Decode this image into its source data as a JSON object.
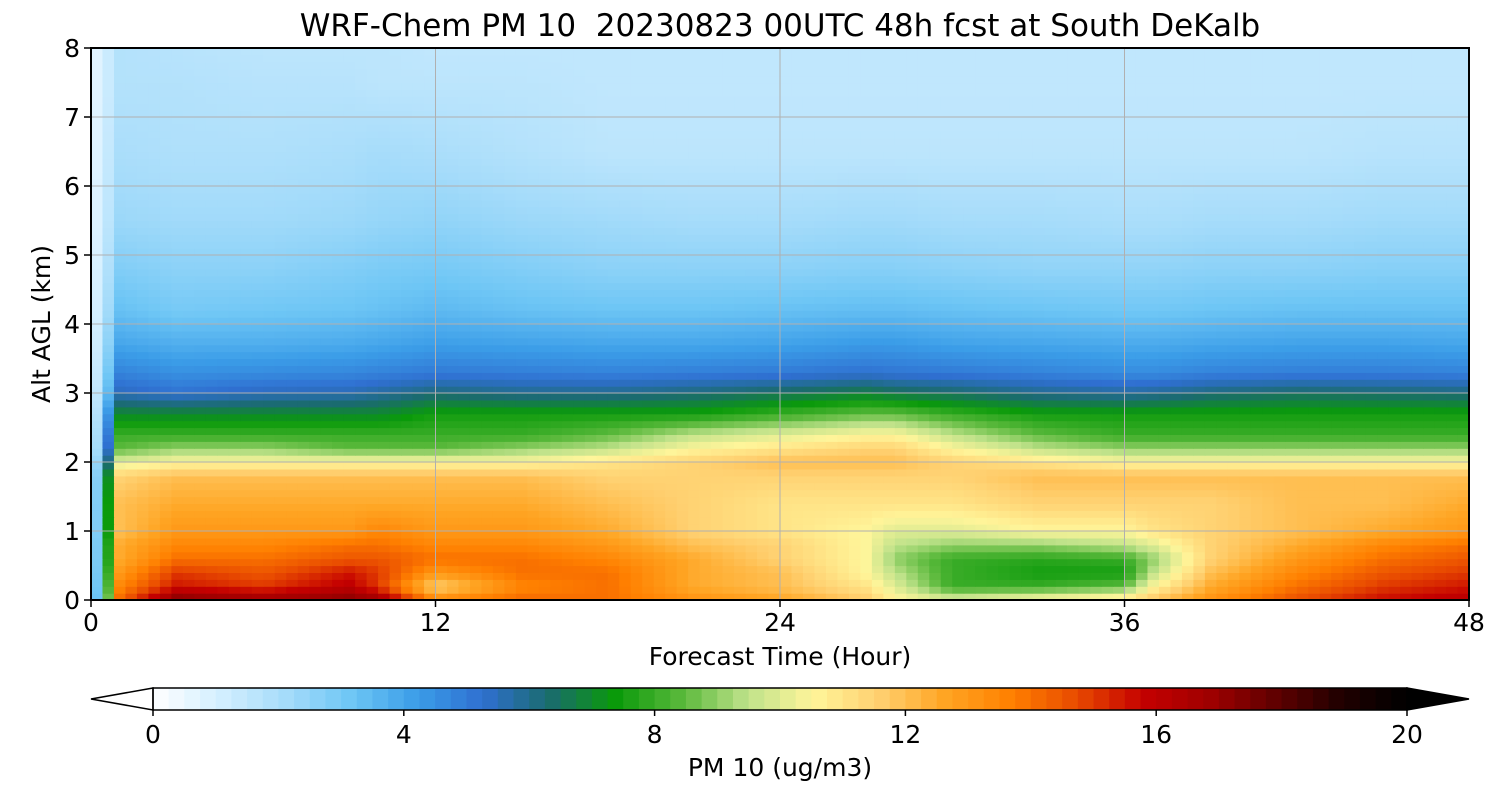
{
  "chart_data": {
    "type": "heatmap",
    "title": "WRF-Chem PM 10  20230823 00UTC 48h fcst at South DeKalb",
    "xlabel": "Forecast Time (Hour)",
    "ylabel": "Alt AGL (km)",
    "xlim": [
      0,
      48
    ],
    "ylim": [
      0,
      8
    ],
    "xticks": [
      "0",
      "12",
      "24",
      "36",
      "48"
    ],
    "yticks": [
      "0",
      "1",
      "2",
      "3",
      "4",
      "5",
      "6",
      "7",
      "8"
    ],
    "grid": true,
    "z_units": "ug/m3",
    "colorbar": {
      "label": "PM 10  (ug/m3)",
      "ticks": [
        "0",
        "4",
        "8",
        "12",
        "16",
        "20"
      ],
      "range": [
        0,
        20
      ],
      "extend": "both",
      "orientation": "horizontal"
    },
    "x_hours": [
      0,
      1,
      3,
      6,
      9,
      10,
      12,
      15,
      18,
      21,
      24,
      27,
      28,
      30,
      33,
      36,
      37,
      39,
      42,
      45,
      48
    ],
    "y_km": [
      0.0,
      0.05,
      0.2,
      0.4,
      0.6,
      0.8,
      1.0,
      1.4,
      1.8,
      2.0,
      2.2,
      2.4,
      2.7,
      3.0,
      3.3,
      3.7,
      4.2,
      4.8,
      5.5,
      6.5,
      7.5,
      8.0
    ],
    "z_values": [
      [
        0.5,
        15.0,
        19.5,
        19.0,
        19.0,
        18.0,
        14.0,
        14.5,
        14.0,
        13.5,
        13.0,
        12.5,
        12.0,
        11.0,
        11.5,
        12.5,
        13.0,
        14.0,
        15.0,
        16.0,
        16.5
      ],
      [
        0.5,
        14.0,
        17.0,
        16.5,
        17.0,
        16.5,
        13.0,
        14.0,
        14.0,
        13.0,
        12.5,
        11.5,
        10.5,
        9.5,
        10.0,
        10.5,
        11.5,
        13.0,
        14.5,
        15.5,
        16.0
      ],
      [
        0.5,
        13.5,
        15.5,
        15.0,
        16.0,
        15.0,
        11.5,
        13.5,
        14.0,
        12.5,
        12.0,
        11.0,
        10.0,
        8.0,
        8.0,
        8.5,
        10.5,
        12.5,
        14.0,
        15.0,
        15.5
      ],
      [
        0.5,
        13.0,
        15.0,
        14.5,
        15.5,
        15.0,
        13.0,
        14.0,
        14.0,
        12.5,
        12.0,
        10.5,
        9.5,
        8.0,
        7.5,
        7.5,
        9.5,
        12.0,
        13.5,
        14.5,
        15.0
      ],
      [
        0.5,
        12.5,
        14.0,
        14.0,
        14.5,
        14.5,
        14.0,
        14.0,
        13.5,
        12.5,
        11.5,
        10.5,
        9.0,
        8.0,
        7.8,
        8.0,
        9.0,
        11.5,
        13.0,
        14.0,
        14.5
      ],
      [
        0.5,
        12.5,
        13.5,
        13.5,
        14.0,
        14.0,
        13.5,
        13.5,
        13.0,
        12.0,
        11.5,
        10.5,
        9.5,
        9.0,
        9.0,
        9.5,
        10.0,
        11.5,
        12.5,
        13.5,
        14.0
      ],
      [
        0.5,
        12.0,
        13.0,
        13.0,
        13.0,
        13.5,
        13.0,
        13.0,
        12.5,
        11.5,
        11.0,
        10.5,
        10.0,
        10.0,
        10.5,
        10.5,
        11.0,
        11.5,
        12.0,
        12.5,
        13.0
      ],
      [
        0.5,
        12.0,
        12.5,
        12.5,
        12.5,
        12.5,
        12.5,
        12.5,
        12.0,
        11.5,
        11.0,
        11.0,
        11.0,
        11.0,
        11.5,
        11.5,
        11.5,
        11.5,
        12.0,
        12.0,
        12.5
      ],
      [
        0.5,
        11.5,
        12.0,
        12.0,
        12.0,
        12.0,
        12.0,
        12.0,
        11.5,
        11.5,
        11.5,
        11.5,
        11.5,
        11.5,
        12.0,
        12.0,
        12.0,
        12.0,
        12.0,
        12.0,
        12.0
      ],
      [
        0.5,
        10.0,
        10.5,
        10.5,
        10.5,
        10.5,
        10.5,
        10.5,
        11.0,
        11.5,
        12.0,
        12.0,
        12.0,
        11.5,
        11.0,
        10.5,
        10.5,
        10.5,
        10.5,
        10.5,
        10.5
      ],
      [
        0.5,
        8.5,
        9.0,
        9.0,
        8.5,
        8.5,
        8.5,
        9.0,
        9.5,
        10.5,
        11.0,
        11.5,
        11.5,
        10.5,
        9.5,
        9.0,
        9.0,
        9.0,
        9.0,
        9.0,
        9.0
      ],
      [
        0.5,
        8.0,
        8.0,
        8.0,
        8.0,
        8.0,
        8.0,
        8.0,
        8.5,
        9.5,
        10.0,
        10.5,
        10.5,
        9.5,
        8.5,
        8.0,
        8.0,
        8.0,
        8.0,
        8.0,
        8.0
      ],
      [
        0.5,
        7.0,
        7.0,
        7.0,
        7.0,
        7.0,
        7.5,
        7.5,
        7.5,
        7.5,
        8.0,
        8.5,
        8.5,
        8.0,
        7.5,
        7.5,
        7.5,
        7.5,
        7.5,
        7.5,
        7.5
      ],
      [
        0.5,
        5.5,
        5.2,
        5.5,
        5.6,
        5.8,
        6.2,
        6.0,
        6.0,
        6.2,
        6.5,
        6.8,
        6.6,
        6.4,
        6.0,
        5.8,
        5.9,
        6.2,
        6.4,
        6.3,
        6.2
      ],
      [
        0.5,
        4.8,
        4.5,
        4.6,
        4.7,
        4.8,
        5.0,
        4.9,
        4.8,
        4.9,
        5.0,
        5.2,
        5.1,
        5.0,
        4.8,
        4.6,
        4.6,
        4.8,
        4.9,
        4.9,
        4.8
      ],
      [
        0.5,
        4.0,
        3.8,
        3.8,
        3.9,
        4.0,
        4.2,
        4.1,
        4.0,
        4.0,
        4.1,
        4.3,
        4.3,
        4.1,
        4.0,
        3.9,
        3.9,
        4.0,
        4.1,
        4.1,
        4.0
      ],
      [
        0.5,
        3.3,
        3.0,
        3.1,
        3.2,
        3.3,
        3.5,
        3.3,
        3.2,
        3.2,
        3.3,
        3.4,
        3.4,
        3.3,
        3.2,
        3.1,
        3.1,
        3.2,
        3.3,
        3.3,
        3.3
      ],
      [
        0.5,
        2.8,
        2.6,
        2.6,
        2.8,
        2.9,
        3.0,
        2.8,
        2.6,
        2.6,
        2.6,
        2.7,
        2.7,
        2.6,
        2.5,
        2.5,
        2.5,
        2.6,
        2.6,
        2.7,
        2.7
      ],
      [
        0.5,
        2.3,
        2.2,
        2.2,
        2.3,
        2.4,
        2.5,
        2.3,
        2.2,
        2.1,
        2.1,
        2.2,
        2.2,
        2.1,
        2.1,
        2.0,
        2.0,
        2.1,
        2.1,
        2.2,
        2.2
      ],
      [
        0.5,
        2.0,
        1.9,
        1.9,
        2.0,
        2.1,
        2.0,
        1.8,
        1.6,
        1.6,
        1.6,
        1.6,
        1.6,
        1.6,
        1.6,
        1.6,
        1.6,
        1.6,
        1.6,
        1.7,
        1.7
      ],
      [
        0.5,
        1.8,
        1.8,
        1.7,
        1.7,
        1.6,
        1.6,
        1.6,
        1.5,
        1.5,
        1.5,
        1.5,
        1.5,
        1.5,
        1.5,
        1.5,
        1.5,
        1.5,
        1.5,
        1.5,
        1.5
      ],
      [
        0.5,
        1.8,
        1.7,
        1.6,
        1.6,
        1.6,
        1.5,
        1.5,
        1.5,
        1.5,
        1.5,
        1.5,
        1.5,
        1.5,
        1.5,
        1.5,
        1.5,
        1.5,
        1.5,
        1.5,
        1.5
      ]
    ],
    "colors": [
      "#ffffff",
      "#d4efff",
      "#a6dcfa",
      "#6ec6f5",
      "#3b9de8",
      "#2f6fd0",
      "#1a6b6e",
      "#0a9a0a",
      "#58b83a",
      "#bfe28a",
      "#fff59a",
      "#ffd070",
      "#ffa523",
      "#ff8000",
      "#e84a00",
      "#c40000",
      "#a00000",
      "#600000",
      "#200000",
      "#000000"
    ]
  }
}
